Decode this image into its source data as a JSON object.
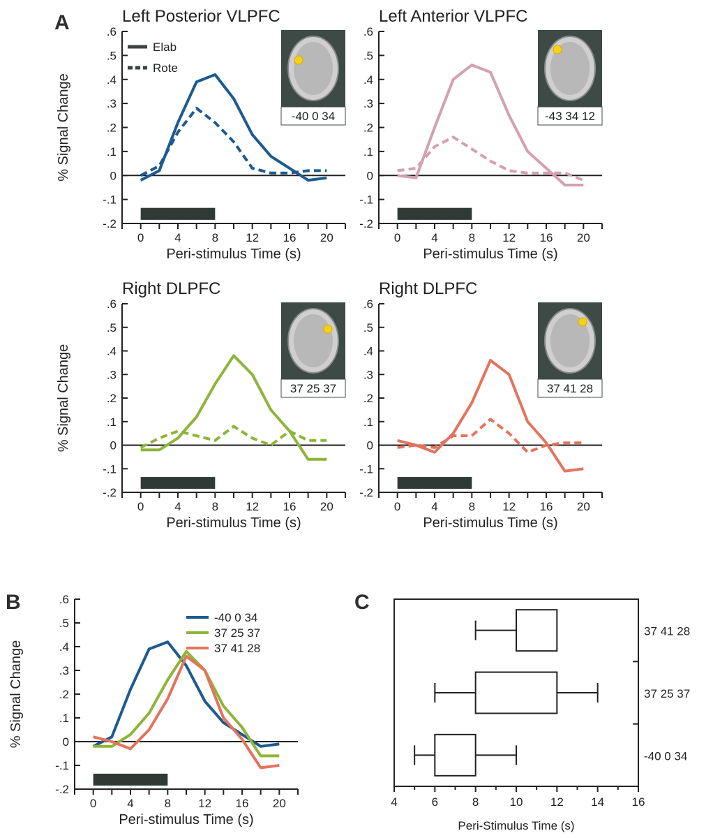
{
  "panel_letters": {
    "a": "A",
    "b": "B",
    "c": "C"
  },
  "stimulus_bar": {
    "start": 0,
    "end": 8
  },
  "legend_a": {
    "elab": "Elab",
    "rote": "Rote"
  },
  "chart_data": [
    {
      "id": "a1",
      "type": "line",
      "title": "Left Posterior VLPFC",
      "xlabel": "Peri-stimulus Time (s)",
      "ylabel": "% Signal Change",
      "xlim": [
        -2,
        22
      ],
      "ylim": [
        -0.2,
        0.6
      ],
      "xticks": [
        0,
        4,
        8,
        12,
        16,
        20
      ],
      "yticks": [
        -0.2,
        -0.1,
        0,
        0.1,
        0.2,
        0.3,
        0.4,
        0.5,
        0.6
      ],
      "x": [
        0,
        2,
        4,
        6,
        8,
        10,
        12,
        14,
        16,
        18,
        20
      ],
      "color": "#1d5a8f",
      "coordinates": "-40 0 34",
      "spot": [
        -0.35,
        -0.2
      ],
      "series": [
        {
          "name": "Elab",
          "style": "solid",
          "values": [
            -0.02,
            0.02,
            0.22,
            0.39,
            0.42,
            0.32,
            0.17,
            0.08,
            0.03,
            -0.02,
            -0.01
          ]
        },
        {
          "name": "Rote",
          "style": "dashed",
          "values": [
            0.0,
            0.04,
            0.18,
            0.28,
            0.22,
            0.14,
            0.03,
            0.01,
            0.01,
            0.02,
            0.02
          ]
        }
      ]
    },
    {
      "id": "a2",
      "type": "line",
      "title": "Left Anterior VLPFC",
      "xlabel": "Peri-stimulus Time (s)",
      "ylabel": "",
      "xlim": [
        -2,
        22
      ],
      "ylim": [
        -0.2,
        0.6
      ],
      "xticks": [
        0,
        4,
        8,
        12,
        16,
        20
      ],
      "yticks": [
        -0.2,
        -0.1,
        0,
        0.1,
        0.2,
        0.3,
        0.4,
        0.5,
        0.6
      ],
      "x": [
        0,
        2,
        4,
        6,
        8,
        10,
        12,
        14,
        16,
        18,
        20
      ],
      "color": "#d4a0b0",
      "coordinates": "-43 34 12",
      "spot": [
        -0.3,
        -0.45
      ],
      "series": [
        {
          "name": "Elab",
          "style": "solid",
          "values": [
            0.0,
            -0.01,
            0.2,
            0.4,
            0.46,
            0.43,
            0.25,
            0.1,
            0.03,
            -0.04,
            -0.04
          ]
        },
        {
          "name": "Rote",
          "style": "dashed",
          "values": [
            0.02,
            0.03,
            0.12,
            0.16,
            0.11,
            0.06,
            0.02,
            0.01,
            0.01,
            0.01,
            -0.02
          ]
        }
      ]
    },
    {
      "id": "a3",
      "type": "line",
      "title": "Right DLPFC",
      "xlabel": "Peri-stimulus Time (s)",
      "ylabel": "% Signal Change",
      "xlim": [
        -2,
        22
      ],
      "ylim": [
        -0.2,
        0.6
      ],
      "xticks": [
        0,
        4,
        8,
        12,
        16,
        20
      ],
      "yticks": [
        -0.2,
        -0.1,
        0,
        0.1,
        0.2,
        0.3,
        0.4,
        0.5,
        0.6
      ],
      "x": [
        0,
        2,
        4,
        6,
        8,
        10,
        12,
        14,
        16,
        18,
        20
      ],
      "color": "#8db53a",
      "coordinates": "37 25 37",
      "spot": [
        0.35,
        -0.28
      ],
      "series": [
        {
          "name": "Elab",
          "style": "solid",
          "values": [
            -0.02,
            -0.02,
            0.03,
            0.12,
            0.26,
            0.38,
            0.3,
            0.15,
            0.06,
            -0.06,
            -0.06
          ]
        },
        {
          "name": "Rote",
          "style": "dashed",
          "values": [
            -0.01,
            0.03,
            0.06,
            0.04,
            0.02,
            0.08,
            0.03,
            0.0,
            0.06,
            0.02,
            0.02
          ]
        }
      ]
    },
    {
      "id": "a4",
      "type": "line",
      "title": "Right DLPFC",
      "xlabel": "Peri-stimulus Time (s)",
      "ylabel": "",
      "xlim": [
        -2,
        22
      ],
      "ylim": [
        -0.2,
        0.6
      ],
      "xticks": [
        0,
        4,
        8,
        12,
        16,
        20
      ],
      "yticks": [
        -0.2,
        -0.1,
        0,
        0.1,
        0.2,
        0.3,
        0.4,
        0.5,
        0.6
      ],
      "x": [
        0,
        2,
        4,
        6,
        8,
        10,
        12,
        14,
        16,
        18,
        20
      ],
      "color": "#e4735e",
      "coordinates": "37 41 28",
      "spot": [
        0.3,
        -0.45
      ],
      "series": [
        {
          "name": "Elab",
          "style": "solid",
          "values": [
            0.02,
            0.0,
            -0.03,
            0.05,
            0.18,
            0.36,
            0.3,
            0.1,
            0.01,
            -0.11,
            -0.1
          ]
        },
        {
          "name": "Rote",
          "style": "dashed",
          "values": [
            -0.01,
            0.0,
            -0.01,
            0.04,
            0.04,
            0.11,
            0.05,
            -0.03,
            0.0,
            0.01,
            0.01
          ]
        }
      ]
    },
    {
      "id": "b",
      "type": "line",
      "title": "",
      "xlabel": "Peri-stimulus Time (s)",
      "ylabel": "% Signal Change",
      "xlim": [
        -2,
        22
      ],
      "ylim": [
        -0.2,
        0.6
      ],
      "xticks": [
        0,
        4,
        8,
        12,
        16,
        20
      ],
      "yticks": [
        -0.2,
        -0.1,
        0,
        0.1,
        0.2,
        0.3,
        0.4,
        0.5,
        0.6
      ],
      "x": [
        0,
        2,
        4,
        6,
        8,
        10,
        12,
        14,
        16,
        18,
        20
      ],
      "series": [
        {
          "name": "-40 0 34",
          "color": "#1d5a8f",
          "values": [
            -0.02,
            0.02,
            0.22,
            0.39,
            0.42,
            0.32,
            0.17,
            0.08,
            0.03,
            -0.02,
            -0.01
          ]
        },
        {
          "name": "37 25 37",
          "color": "#8db53a",
          "values": [
            -0.02,
            -0.02,
            0.03,
            0.12,
            0.26,
            0.38,
            0.3,
            0.15,
            0.06,
            -0.06,
            -0.06
          ]
        },
        {
          "name": "37 41 28",
          "color": "#e4735e",
          "values": [
            0.02,
            0.0,
            -0.03,
            0.05,
            0.18,
            0.36,
            0.3,
            0.1,
            0.01,
            -0.11,
            -0.1
          ]
        }
      ]
    },
    {
      "id": "c",
      "type": "box",
      "title": "",
      "xlabel": "Peri-Stimulus  Time (s)",
      "xlim": [
        4,
        16
      ],
      "xticks": [
        4,
        6,
        8,
        10,
        12,
        14,
        16
      ],
      "rows": [
        {
          "label": "37 41 28",
          "whisker_low": 8,
          "q1": 10,
          "q3": 12,
          "whisker_high": 12
        },
        {
          "label": "37 25 37",
          "whisker_low": 6,
          "q1": 8,
          "q3": 12,
          "whisker_high": 14
        },
        {
          "label": "-40 0 34",
          "whisker_low": 5,
          "q1": 6,
          "q3": 8,
          "whisker_high": 10
        }
      ]
    }
  ]
}
